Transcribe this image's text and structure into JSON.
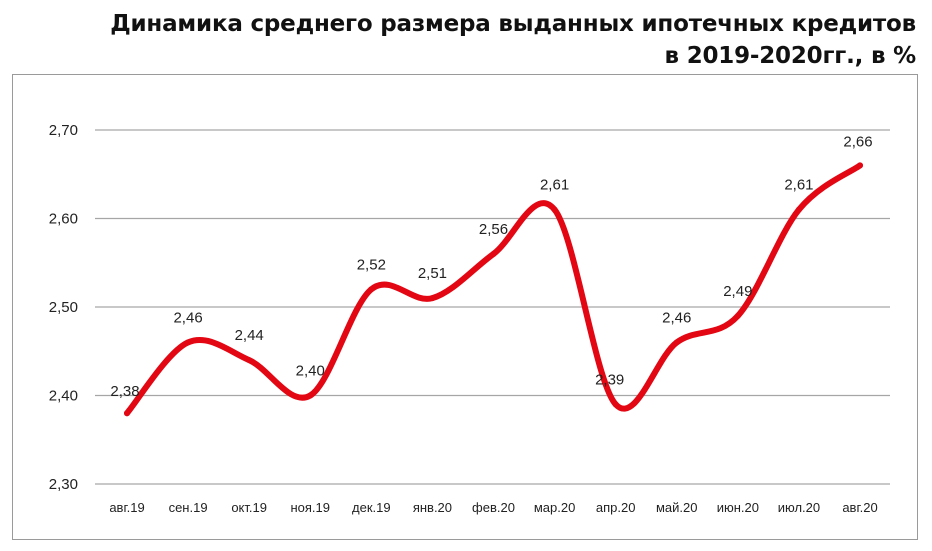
{
  "title": {
    "line1": "Динамика среднего размера выданных ипотечных кредитов",
    "line2": "в 2019-2020гг., в %"
  },
  "colors": {
    "line": "#e30613",
    "grid": "#a6a6a6",
    "text": "#222222"
  },
  "chart_data": {
    "type": "line",
    "title": "Динамика среднего размера выданных ипотечных кредитов в 2019-2020гг., в %",
    "xlabel": "",
    "ylabel": "",
    "categories": [
      "авг.19",
      "сен.19",
      "окт.19",
      "ноя.19",
      "дек.19",
      "янв.20",
      "фев.20",
      "мар.20",
      "апр.20",
      "май.20",
      "июн.20",
      "июл.20",
      "авг.20"
    ],
    "series": [
      {
        "values": [
          2.38,
          2.46,
          2.44,
          2.4,
          2.52,
          2.51,
          2.56,
          2.61,
          2.39,
          2.46,
          2.49,
          2.61,
          2.66
        ]
      }
    ],
    "data_labels": [
      "2,38",
      "2,46",
      "2,44",
      "2,40",
      "2,52",
      "2,51",
      "2,56",
      "2,61",
      "2,39",
      "2,46",
      "2,49",
      "2,61",
      "2,66"
    ],
    "y_ticks": [
      2.3,
      2.4,
      2.5,
      2.6,
      2.7
    ],
    "y_tick_labels": [
      "2,30",
      "2,40",
      "2,50",
      "2,60",
      "2,70"
    ],
    "ylim": [
      2.3,
      2.7
    ],
    "grid": true,
    "legend": "none",
    "smooth": true
  }
}
